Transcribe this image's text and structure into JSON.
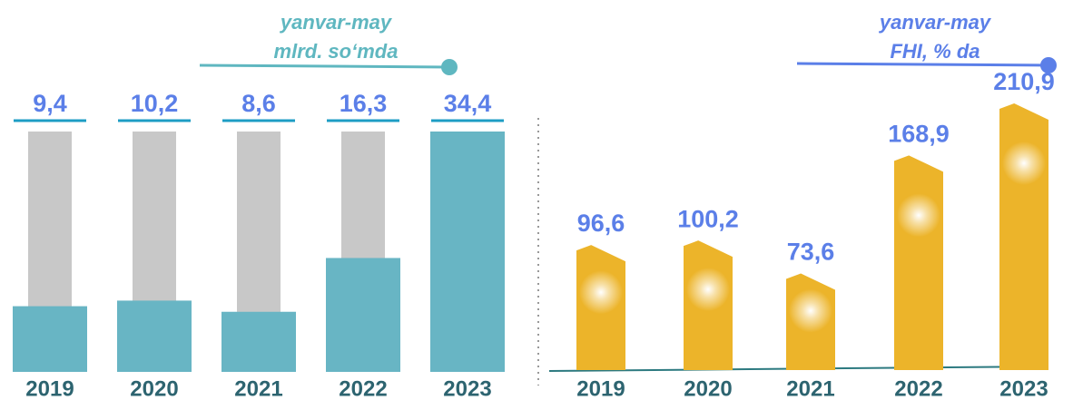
{
  "chart_data": [
    {
      "type": "bar",
      "title": "yanvar-may",
      "subtitle": "mlrd. so‘mda",
      "categories": [
        "2019",
        "2020",
        "2021",
        "2022",
        "2023"
      ],
      "values": [
        9.4,
        10.2,
        8.6,
        16.3,
        34.4
      ],
      "value_labels": [
        "9,4",
        "10,2",
        "8,6",
        "16,3",
        "34,4"
      ],
      "color": "#68b5c4",
      "background_color": "#c8c8c8",
      "title_color": "#5fb7c0"
    },
    {
      "type": "bar",
      "title": "yanvar-may",
      "subtitle": "FHI, % da",
      "categories": [
        "2019",
        "2020",
        "2021",
        "2022",
        "2023"
      ],
      "values": [
        96.6,
        100.2,
        73.6,
        168.9,
        210.9
      ],
      "value_labels": [
        "96,6",
        "100,2",
        "73,6",
        "168,9",
        "210,9"
      ],
      "color": "#ecb42a",
      "title_color": "#5b7fe8"
    }
  ]
}
